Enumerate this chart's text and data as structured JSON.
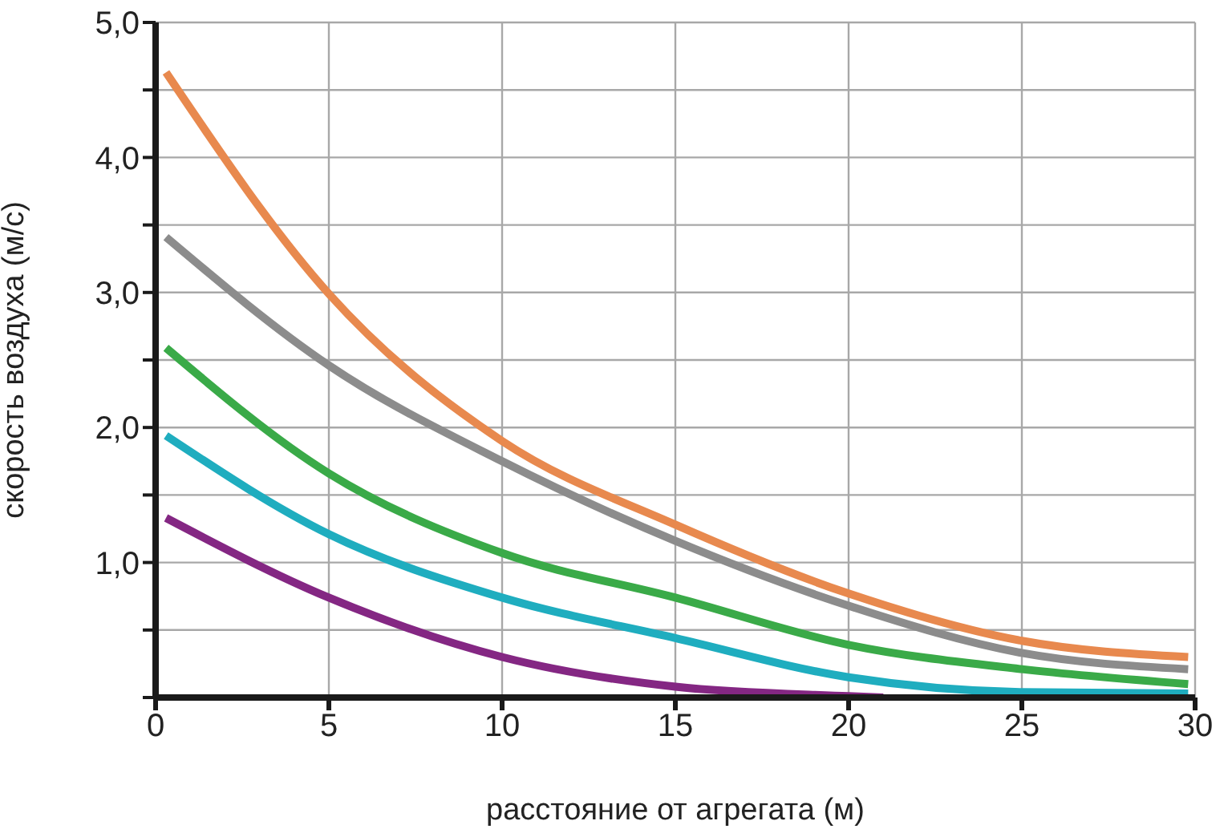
{
  "chart_data": {
    "type": "line",
    "xlabel": "расстояние от агрегата (м)",
    "ylabel": "скорость воздуха (м/с)",
    "xlim": [
      0,
      30
    ],
    "xticks": [
      0,
      5,
      10,
      15,
      20,
      25,
      30
    ],
    "ylim": [
      0,
      5
    ],
    "yticks": [
      {
        "value": 0,
        "label": null
      },
      {
        "value": 0.5,
        "label": null
      },
      {
        "value": 1,
        "label": "1,0"
      },
      {
        "value": 1.5,
        "label": null
      },
      {
        "value": 2,
        "label": "2,0"
      },
      {
        "value": 2.5,
        "label": null
      },
      {
        "value": 3,
        "label": "3,0"
      },
      {
        "value": 3.5,
        "label": null
      },
      {
        "value": 4,
        "label": "4,0"
      },
      {
        "value": 4.5,
        "label": null
      },
      {
        "value": 5,
        "label": "5,0"
      }
    ],
    "grid": true,
    "marker": "none",
    "line_style": "solid",
    "series": [
      {
        "color": "#e8894e",
        "x": [
          0.3,
          5,
          10,
          15,
          20,
          25,
          29.8
        ],
        "values": [
          4.63,
          2.99,
          1.9,
          1.28,
          0.77,
          0.42,
          0.3
        ]
      },
      {
        "color": "#8c8c8c",
        "x": [
          0.3,
          5,
          10,
          15,
          20,
          25,
          29.8
        ],
        "values": [
          3.41,
          2.46,
          1.75,
          1.16,
          0.68,
          0.33,
          0.21
        ]
      },
      {
        "color": "#3aaa48",
        "x": [
          0.3,
          5,
          10,
          15,
          20,
          25,
          29.8
        ],
        "values": [
          2.59,
          1.66,
          1.07,
          0.74,
          0.39,
          0.21,
          0.1
        ]
      },
      {
        "color": "#1fadbf",
        "x": [
          0.3,
          5,
          10,
          15,
          20,
          25,
          29.8
        ],
        "values": [
          1.94,
          1.21,
          0.74,
          0.44,
          0.15,
          0.04,
          0.03
        ]
      },
      {
        "color": "#842783",
        "x": [
          0.3,
          5,
          10,
          15,
          20,
          21
        ],
        "values": [
          1.33,
          0.74,
          0.3,
          0.08,
          0.01,
          0
        ]
      }
    ]
  }
}
